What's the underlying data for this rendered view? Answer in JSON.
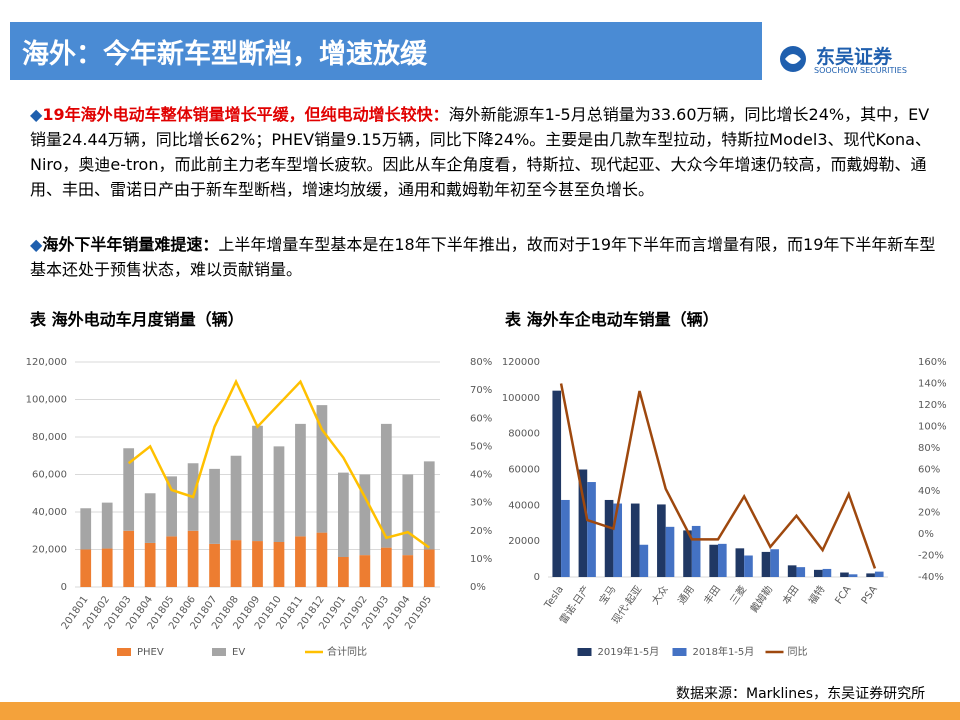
{
  "header": {
    "title": "海外：今年新车型断档，增速放缓",
    "logo": "东吴证券",
    "logo_sub": "SOOCHOW SECURITIES"
  },
  "bullets": [
    {
      "lead": "19年海外电动车整体销量增长平缓，但纯电动增长较快：",
      "body": "海外新能源车1-5月总销量为33.60万辆，同比增长24%，其中，EV销量24.44万辆，同比增长62%；PHEV销量9.15万辆，同比下降24%。主要是由几款车型拉动，特斯拉Model3、现代Kona、Niro，奥迪e-tron，而此前主力老车型增长疲软。因此从车企角度看，特斯拉、现代起亚、大众今年增速仍较高，而戴姆勒、通用、丰田、雷诺日产由于新车型断档，增速均放缓，通用和戴姆勒年初至今甚至负增长。"
    },
    {
      "lead": "海外下半年销量难提速：",
      "body": "上半年增量车型基本是在18年下半年推出，故而对于19年下半年而言增量有限，而19年下半年新车型基本还处于预售状态，难以贡献销量。"
    }
  ],
  "source": "数据来源：Marklines，东吴证券研究所",
  "chart_data": [
    {
      "type": "bar",
      "title": "表  海外电动车月度销量（辆）",
      "stacked": true,
      "grid": true,
      "categories": [
        "201801",
        "201802",
        "201803",
        "201804",
        "201805",
        "201806",
        "201807",
        "201808",
        "201809",
        "201810",
        "201811",
        "201812",
        "201901",
        "201902",
        "201903",
        "201904",
        "201905"
      ],
      "series": [
        {
          "name": "PHEV",
          "color": "#ed7d31",
          "values": [
            20000,
            20500,
            30000,
            23500,
            27000,
            30000,
            23000,
            25000,
            24500,
            24000,
            27000,
            29000,
            16000,
            17000,
            21000,
            17000,
            20000
          ]
        },
        {
          "name": "EV",
          "color": "#a5a5a5",
          "values": [
            22000,
            24500,
            44000,
            26500,
            32000,
            36000,
            40000,
            45000,
            61500,
            51000,
            60000,
            68000,
            45000,
            43000,
            66000,
            43000,
            47000
          ]
        },
        {
          "name": "合计同比",
          "color": "#ffc000",
          "type": "line",
          "axis": "y2",
          "values": [
            null,
            null,
            44,
            50,
            34.5,
            32,
            57,
            73,
            57,
            65,
            73,
            56,
            46,
            32,
            17.5,
            19.5,
            14
          ]
        }
      ],
      "ylim": [
        0,
        120000
      ],
      "yticks": [
        0,
        {
          "value": 20000,
          "label": "20,000"
        },
        {
          "value": 40000,
          "label": "40,000"
        },
        {
          "value": 60000,
          "label": "60,000"
        },
        {
          "value": 80000,
          "label": "80,000"
        },
        {
          "value": 100000,
          "label": "100,000"
        },
        {
          "value": 120000,
          "label": "120,000"
        }
      ],
      "y2lim": [
        0,
        80
      ],
      "y2ticks": [
        {
          "value": 0,
          "label": "0%"
        },
        {
          "value": 10,
          "label": "10%"
        },
        {
          "value": 20,
          "label": "20%"
        },
        {
          "value": 30,
          "label": "30%"
        },
        {
          "value": 40,
          "label": "40%"
        },
        {
          "value": 50,
          "label": "50%"
        },
        {
          "value": 60,
          "label": "60%"
        },
        {
          "value": 70,
          "label": "70%"
        },
        {
          "value": 80,
          "label": "80%"
        }
      ]
    },
    {
      "type": "bar",
      "title": "表  海外车企电动车销量（辆）",
      "stacked": false,
      "grid": false,
      "categories": [
        "Tesla",
        "雷诺-日产",
        "宝马",
        "现代-起亚",
        "大众",
        "通用",
        "丰田",
        "三菱",
        "戴姆勒",
        "本田",
        "福特",
        "FCA",
        "PSA"
      ],
      "series": [
        {
          "name": "2019年1-5月",
          "color": "#203864",
          "values": [
            104000,
            60000,
            43000,
            41000,
            40500,
            26000,
            18000,
            16000,
            14000,
            6500,
            4000,
            2500,
            2000
          ]
        },
        {
          "name": "2018年1-5月",
          "color": "#4472c4",
          "values": [
            43000,
            53000,
            41000,
            18000,
            28000,
            28500,
            18500,
            12000,
            15500,
            5500,
            4500,
            1500,
            3000
          ]
        },
        {
          "name": "同比",
          "color": "#9e480e",
          "type": "line",
          "axis": "y2",
          "values": [
            140,
            13,
            5,
            133,
            42,
            -5,
            -5,
            35,
            -12,
            17,
            -15,
            37,
            -32
          ]
        }
      ],
      "ylim": [
        0,
        120000
      ],
      "yticks": [
        0,
        20000,
        40000,
        60000,
        80000,
        100000,
        120000
      ],
      "y2lim": [
        -40,
        160
      ],
      "y2ticks": [
        {
          "value": -40,
          "label": "-40%"
        },
        {
          "value": -20,
          "label": "-20%"
        },
        {
          "value": 0,
          "label": "0%"
        },
        {
          "value": 20,
          "label": "20%"
        },
        {
          "value": 40,
          "label": "40%"
        },
        {
          "value": 60,
          "label": "60%"
        },
        {
          "value": 80,
          "label": "80%"
        },
        {
          "value": 100,
          "label": "100%"
        },
        {
          "value": 120,
          "label": "120%"
        },
        {
          "value": 140,
          "label": "140%"
        },
        {
          "value": 160,
          "label": "160%"
        }
      ]
    }
  ]
}
